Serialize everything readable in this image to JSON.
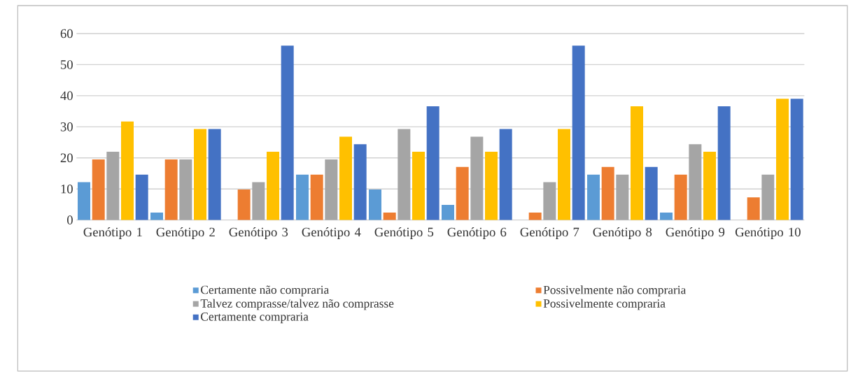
{
  "chart_data": {
    "type": "bar",
    "categories": [
      "Genótipo 1",
      "Genótipo 2",
      "Genótipo 3",
      "Genótipo 4",
      "Genótipo 5",
      "Genótipo 6",
      "Genótipo 7",
      "Genótipo 8",
      "Genótipo 9",
      "Genótipo 10"
    ],
    "series": [
      {
        "name": "Certamente não compraria",
        "color": "#5b9bd5",
        "values": [
          12.2,
          2.4,
          0,
          14.6,
          9.8,
          4.9,
          0,
          14.6,
          2.4,
          0
        ]
      },
      {
        "name": "Possivelmente não compraria",
        "color": "#ed7d31",
        "values": [
          19.5,
          19.5,
          9.8,
          14.6,
          2.4,
          17.1,
          2.4,
          17.1,
          14.6,
          7.3
        ]
      },
      {
        "name": "Talvez comprasse/talvez não comprasse",
        "color": "#a5a5a5",
        "values": [
          22,
          19.5,
          12.2,
          19.5,
          29.3,
          26.8,
          12.2,
          14.6,
          24.4,
          14.6
        ]
      },
      {
        "name": "Possivelmente compraria",
        "color": "#ffc000",
        "values": [
          31.7,
          29.3,
          22,
          26.8,
          22,
          22,
          29.3,
          36.6,
          22,
          39
        ]
      },
      {
        "name": "Certamente compraria",
        "color": "#4472c4",
        "values": [
          14.6,
          29.3,
          56.1,
          24.4,
          36.6,
          29.3,
          56.1,
          17.1,
          36.6,
          39
        ]
      }
    ],
    "ylim": [
      0,
      60
    ],
    "yticks": [
      0,
      10,
      20,
      30,
      40,
      50,
      60
    ],
    "grid": "y",
    "legend": "bottom"
  }
}
